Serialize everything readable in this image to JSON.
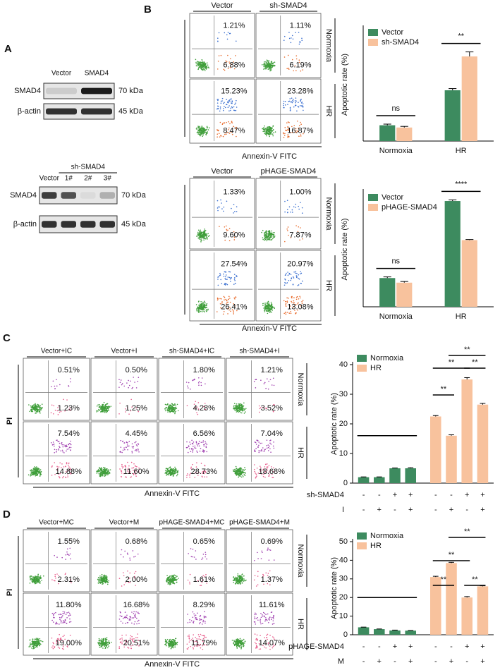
{
  "panel_labels": [
    "A",
    "B",
    "C",
    "D"
  ],
  "blots": [
    {
      "lanes": [
        "Vector",
        "SMAD4"
      ],
      "rows": [
        {
          "protein": "SMAD4",
          "size": "70 kDa"
        },
        {
          "protein": "β-actin",
          "size": "45 kDa"
        }
      ]
    },
    {
      "group": "sh-SMAD4",
      "lanes": [
        "Vector",
        "1#",
        "2#",
        "3#"
      ],
      "rows": [
        {
          "protein": "SMAD4",
          "size": "70 kDa"
        },
        {
          "protein": "β-actin",
          "size": "45 kDa"
        }
      ]
    }
  ],
  "flow_panels": [
    {
      "columns": [
        "Vector",
        "sh-SMAD4"
      ],
      "rows": [
        "Normoxia",
        "HR"
      ],
      "x_label": "Annexin-V FITC",
      "percentages": [
        [
          [
            "1.21%",
            "6.88%"
          ],
          [
            "1.11%",
            "6.19%"
          ]
        ],
        [
          [
            "15.23%",
            "8.47%"
          ],
          [
            "23.28%",
            "16.87%"
          ]
        ]
      ]
    },
    {
      "columns": [
        "Vector",
        "pHAGE-SMAD4"
      ],
      "rows": [
        "Normoxia",
        "HR"
      ],
      "x_label": "Annexin-V FITC",
      "percentages": [
        [
          [
            "1.33%",
            "9.60%"
          ],
          [
            "1.00%",
            "7.87%"
          ]
        ],
        [
          [
            "27.54%",
            "26.41%"
          ],
          [
            "20.97%",
            "13.08%"
          ]
        ]
      ]
    },
    {
      "columns": [
        "Vector+IC",
        "Vector+I",
        "sh-SMAD4+IC",
        "sh-SMAD4+I"
      ],
      "rows": [
        "Normoxia",
        "HR"
      ],
      "x_label": "Annexin-V FITC",
      "y_label": "PI",
      "percentages": [
        [
          [
            "0.51%",
            "1.23%"
          ],
          [
            "0.50%",
            "1.25%"
          ],
          [
            "1.80%",
            "4.28%"
          ],
          [
            "1.21%",
            "3.52%"
          ]
        ],
        [
          [
            "7.54%",
            "14.88%"
          ],
          [
            "4.45%",
            "11.60%"
          ],
          [
            "6.56%",
            "28.73%"
          ],
          [
            "7.04%",
            "18.68%"
          ]
        ]
      ]
    },
    {
      "columns": [
        "Vector+MC",
        "Vector+M",
        "pHAGE-SMAD4+MC",
        "pHAGE-SMAD4+M"
      ],
      "rows": [
        "Normoxia",
        "HR"
      ],
      "x_label": "Annexin-V FITC",
      "y_label": "PI",
      "percentages": [
        [
          [
            "1.55%",
            "2.31%"
          ],
          [
            "0.68%",
            "2.00%"
          ],
          [
            "0.65%",
            "1.61%"
          ],
          [
            "0.69%",
            "1.37%"
          ]
        ],
        [
          [
            "11.80%",
            "19.00%"
          ],
          [
            "16.68%",
            "20.51%"
          ],
          [
            "8.29%",
            "11.79%"
          ],
          [
            "11.61%",
            "14.07%"
          ]
        ]
      ]
    }
  ],
  "chart_data": [
    {
      "type": "bar",
      "y_label": "Apoptotic rate (%)",
      "categories": [
        "Normoxia",
        "HR"
      ],
      "ylim": [
        0,
        100
      ],
      "series": [
        {
          "name": "Vector",
          "color": "#3d8b5f",
          "values": [
            14,
            45
          ],
          "errors": [
            1,
            1.5
          ]
        },
        {
          "name": "sh-SMAD4",
          "color": "#f8c29d",
          "values": [
            12,
            75
          ],
          "errors": [
            1,
            4
          ]
        }
      ],
      "annotations": [
        "ns",
        "**"
      ]
    },
    {
      "type": "bar",
      "y_label": "Apoptotic rate (%)",
      "categories": [
        "Normoxia",
        "HR"
      ],
      "ylim": [
        0,
        100
      ],
      "series": [
        {
          "name": "Vector",
          "color": "#3d8b5f",
          "values": [
            25,
            92
          ],
          "errors": [
            1,
            1
          ]
        },
        {
          "name": "pHAGE-SMAD4",
          "color": "#f8c29d",
          "values": [
            21,
            58
          ],
          "errors": [
            1,
            0.5
          ]
        }
      ],
      "annotations": [
        "ns",
        "****"
      ]
    },
    {
      "type": "bar",
      "y_label": "Apoptotic rate (%)",
      "ylim": [
        0,
        40
      ],
      "yticks": [
        0,
        10,
        20,
        30,
        40
      ],
      "series": [
        {
          "name": "Normoxia",
          "color": "#3d8b5f",
          "values": [
            2,
            2,
            5,
            5
          ],
          "errors": [
            0.1,
            0.1,
            0.1,
            0.2
          ]
        },
        {
          "name": "HR",
          "color": "#f8c29d",
          "values": [
            22.5,
            16,
            35,
            26.5
          ],
          "errors": [
            0.3,
            0.3,
            0.6,
            0.4
          ]
        }
      ],
      "conditions": [
        {
          "name": "sh-SMAD4",
          "signs": [
            "-",
            "-",
            "+",
            "+",
            "-",
            "-",
            "+",
            "+"
          ]
        },
        {
          "name": "I",
          "signs": [
            "-",
            "+",
            "-",
            "+",
            "-",
            "+",
            "-",
            "+"
          ]
        }
      ],
      "annotations": [
        "**",
        "**",
        "**",
        "**"
      ]
    },
    {
      "type": "bar",
      "y_label": "Apoptotic rate (%)",
      "ylim": [
        0,
        50
      ],
      "yticks": [
        0,
        10,
        20,
        30,
        40,
        50
      ],
      "series": [
        {
          "name": "Normoxia",
          "color": "#3d8b5f",
          "values": [
            4,
            3,
            2.3,
            2.2
          ],
          "errors": [
            0.1,
            0.1,
            0.2,
            0.1
          ]
        },
        {
          "name": "HR",
          "color": "#f8c29d",
          "values": [
            31,
            38.5,
            20,
            26
          ],
          "errors": [
            0.4,
            0.4,
            0.5,
            0.3
          ]
        }
      ],
      "conditions": [
        {
          "name": "pHAGE-SMAD4",
          "signs": [
            "-",
            "-",
            "+",
            "+",
            "-",
            "-",
            "+",
            "+"
          ]
        },
        {
          "name": "M",
          "signs": [
            "-",
            "+",
            "-",
            "+",
            "-",
            "+",
            "-",
            "+"
          ]
        }
      ],
      "annotations": [
        "**",
        "**",
        "**",
        "**"
      ]
    }
  ]
}
